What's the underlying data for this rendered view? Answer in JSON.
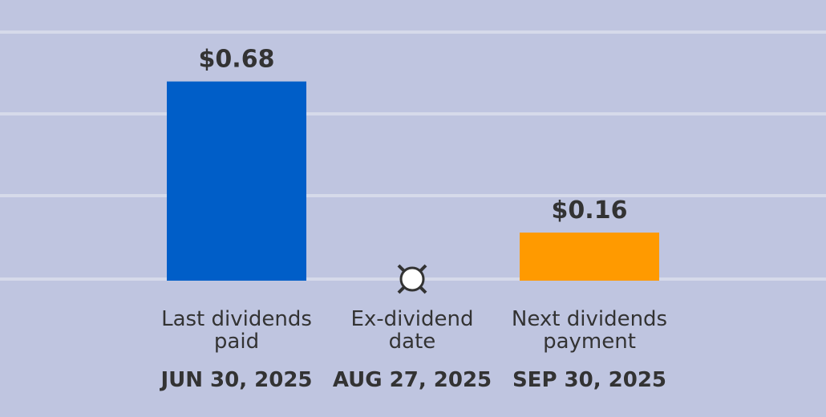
{
  "colors": {
    "background": "#bfc5e0",
    "gridline": "#d6daea",
    "text": "#333333",
    "last_paid_bar": "#005ec8",
    "next_payment_bar": "#ff9a00",
    "ex_dividend_marker_fill": "#ffffff",
    "ex_dividend_marker_stroke": "#333333"
  },
  "chart_data": {
    "type": "bar",
    "categories": [
      {
        "line1": "Last dividends",
        "line2": "paid"
      },
      {
        "line1": "Ex-dividend",
        "line2": "date"
      },
      {
        "line1": "Next dividends",
        "line2": "payment"
      }
    ],
    "values": [
      0.68,
      null,
      0.16
    ],
    "value_labels": [
      "$0.68",
      "",
      "$0.16"
    ],
    "dates": [
      "JUN 30, 2025",
      "AUG 27, 2025",
      "SEP 30, 2025"
    ],
    "marker": {
      "category_index": 1,
      "icon": "ex-dividend-marker-icon"
    },
    "ylim": [
      0,
      0.85
    ],
    "grid": true,
    "legend": "none",
    "title": "",
    "xlabel": "",
    "ylabel": ""
  }
}
